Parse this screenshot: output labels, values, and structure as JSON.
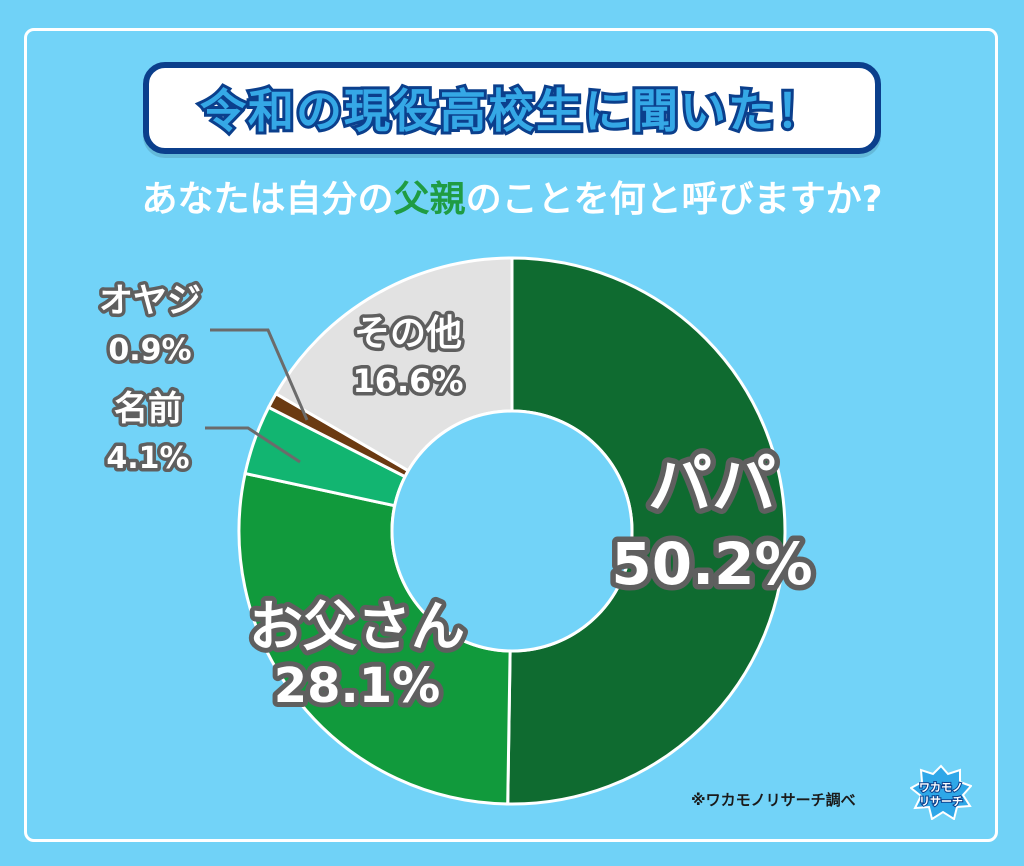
{
  "header": {
    "title": "令和の現役高校生に聞いた！",
    "question_before": "あなたは自分の",
    "question_highlight": "父親",
    "question_after": "のことを何と呼びますか?"
  },
  "chart_data": {
    "type": "pie",
    "style": "donut",
    "slices": [
      {
        "label": "パパ",
        "value": 50.2,
        "display": "50.2%",
        "color": "#0f6b30"
      },
      {
        "label": "お父さん",
        "value": 28.1,
        "display": "28.1%",
        "color": "#119a3c"
      },
      {
        "label": "名前",
        "value": 4.1,
        "display": "4.1%",
        "color": "#12b571"
      },
      {
        "label": "オヤジ",
        "value": 0.9,
        "display": "0.9%",
        "color": "#6b3a12"
      },
      {
        "label": "その他",
        "value": 16.6,
        "display": "16.6%",
        "color": "#e2e2e2"
      }
    ],
    "start": "12 o'clock",
    "direction": "clockwise"
  },
  "footer": {
    "credit": "※ワカモノリサーチ調べ",
    "logo_text_top": "ワカモノ",
    "logo_text_bottom": "リサーチ"
  },
  "colors": {
    "background": "#70d2f7",
    "title_border": "#0b3f8c",
    "title_fill": "#35a8e6",
    "highlight": "#1f9c43"
  }
}
